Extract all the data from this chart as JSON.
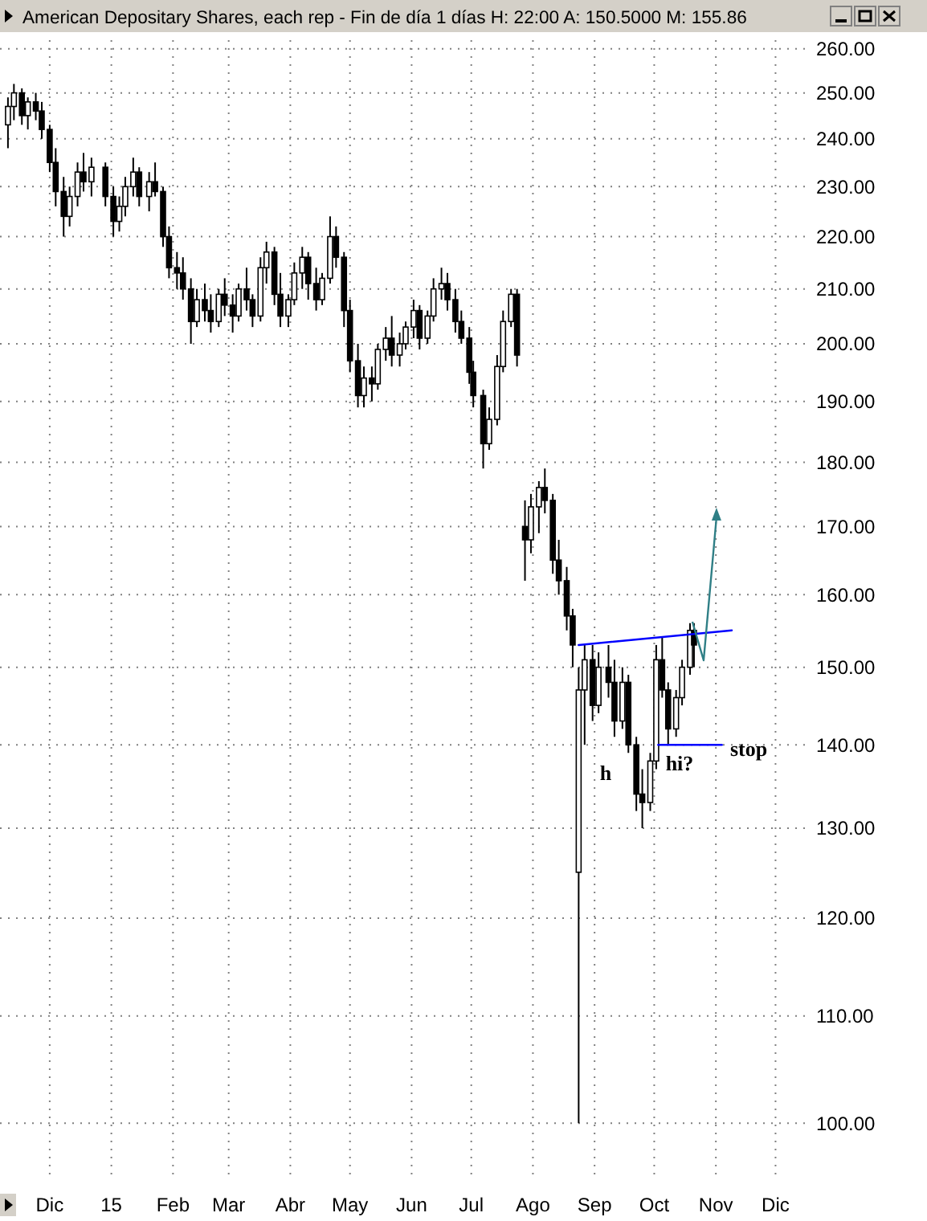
{
  "chart_data": {
    "type": "candlestick",
    "title": "American Depositary Shares, each rep - Fin de día 1 días  H: 22:00  A: 150.5000  M: 155.86",
    "color": "#000000",
    "x": [
      "2014-11-10",
      "2014-11-13",
      "2014-11-17",
      "2014-11-20",
      "2014-11-24",
      "2014-11-27",
      "2014-12-01",
      "2014-12-04",
      "2014-12-08",
      "2014-12-11",
      "2014-12-15",
      "2014-12-18",
      "2014-12-22",
      "2014-12-29",
      "2015-01-02",
      "2015-01-05",
      "2015-01-08",
      "2015-01-12",
      "2015-01-15",
      "2015-01-20",
      "2015-01-23",
      "2015-01-27",
      "2015-01-30",
      "2015-02-03",
      "2015-02-06",
      "2015-02-10",
      "2015-02-13",
      "2015-02-17",
      "2015-02-20",
      "2015-02-24",
      "2015-02-27",
      "2015-03-03",
      "2015-03-06",
      "2015-03-10",
      "2015-03-13",
      "2015-03-17",
      "2015-03-20",
      "2015-03-24",
      "2015-03-27",
      "2015-03-31",
      "2015-04-03",
      "2015-04-07",
      "2015-04-10",
      "2015-04-14",
      "2015-04-17",
      "2015-04-21",
      "2015-04-24",
      "2015-04-28",
      "2015-05-01",
      "2015-05-05",
      "2015-05-08",
      "2015-05-12",
      "2015-05-15",
      "2015-05-19",
      "2015-05-22",
      "2015-05-26",
      "2015-05-29",
      "2015-06-02",
      "2015-06-05",
      "2015-06-09",
      "2015-06-12",
      "2015-06-16",
      "2015-06-19",
      "2015-06-23",
      "2015-06-26",
      "2015-06-30",
      "2015-07-02",
      "2015-07-07",
      "2015-07-10",
      "2015-07-14",
      "2015-07-17",
      "2015-07-21",
      "2015-07-24",
      "2015-07-28",
      "2015-07-31",
      "2015-08-04",
      "2015-08-07",
      "2015-08-11",
      "2015-08-14",
      "2015-08-18",
      "2015-08-21",
      "2015-08-24",
      "2015-08-27",
      "2015-08-31",
      "2015-09-03",
      "2015-09-08",
      "2015-09-11",
      "2015-09-15",
      "2015-09-18",
      "2015-09-22",
      "2015-09-25",
      "2015-09-29",
      "2015-10-02",
      "2015-10-05",
      "2015-10-08",
      "2015-10-12",
      "2015-10-15",
      "2015-10-19",
      "2015-10-21"
    ],
    "ohlc": [
      [
        243,
        249,
        238,
        247
      ],
      [
        247,
        252,
        244,
        250
      ],
      [
        250,
        251,
        243,
        245
      ],
      [
        245,
        249,
        242,
        248
      ],
      [
        248,
        250,
        244,
        246
      ],
      [
        246,
        248,
        240,
        242
      ],
      [
        242,
        243,
        233,
        235
      ],
      [
        235,
        238,
        226,
        229
      ],
      [
        229,
        232,
        220,
        224
      ],
      [
        224,
        230,
        222,
        228
      ],
      [
        228,
        235,
        226,
        233
      ],
      [
        233,
        237,
        229,
        231
      ],
      [
        231,
        236,
        228,
        234
      ],
      [
        234,
        235,
        226,
        228
      ],
      [
        228,
        230,
        220,
        223
      ],
      [
        223,
        228,
        221,
        226
      ],
      [
        226,
        232,
        224,
        230
      ],
      [
        230,
        236,
        228,
        233
      ],
      [
        233,
        234,
        226,
        228
      ],
      [
        228,
        233,
        225,
        231
      ],
      [
        231,
        235,
        228,
        229
      ],
      [
        229,
        230,
        218,
        220
      ],
      [
        220,
        222,
        212,
        214
      ],
      [
        214,
        217,
        210,
        213
      ],
      [
        213,
        216,
        208,
        210
      ],
      [
        210,
        212,
        200,
        204
      ],
      [
        204,
        210,
        203,
        208
      ],
      [
        208,
        211,
        204,
        206
      ],
      [
        206,
        209,
        202,
        204
      ],
      [
        204,
        210,
        203,
        209
      ],
      [
        209,
        212,
        205,
        207
      ],
      [
        207,
        209,
        202,
        205
      ],
      [
        205,
        211,
        204,
        210
      ],
      [
        210,
        214,
        206,
        208
      ],
      [
        208,
        209,
        203,
        205
      ],
      [
        205,
        216,
        204,
        214
      ],
      [
        214,
        219,
        211,
        217
      ],
      [
        217,
        218,
        207,
        209
      ],
      [
        209,
        213,
        203,
        205
      ],
      [
        205,
        209,
        203,
        208
      ],
      [
        208,
        215,
        207,
        213
      ],
      [
        213,
        218,
        210,
        216
      ],
      [
        216,
        217,
        208,
        211
      ],
      [
        211,
        214,
        206,
        208
      ],
      [
        208,
        213,
        207,
        212
      ],
      [
        212,
        224,
        211,
        220
      ],
      [
        220,
        222,
        214,
        216
      ],
      [
        216,
        217,
        203,
        206
      ],
      [
        206,
        208,
        195,
        197
      ],
      [
        197,
        200,
        189,
        191
      ],
      [
        191,
        196,
        189,
        194
      ],
      [
        194,
        196,
        190,
        193
      ],
      [
        193,
        200,
        192,
        199
      ],
      [
        199,
        203,
        197,
        201
      ],
      [
        201,
        205,
        196,
        198
      ],
      [
        198,
        202,
        196,
        200
      ],
      [
        200,
        204,
        199,
        203
      ],
      [
        203,
        208,
        201,
        206
      ],
      [
        206,
        207,
        199,
        201
      ],
      [
        201,
        206,
        200,
        205
      ],
      [
        205,
        212,
        204,
        210
      ],
      [
        210,
        214,
        208,
        211
      ],
      [
        211,
        213,
        206,
        208
      ],
      [
        208,
        210,
        202,
        204
      ],
      [
        204,
        206,
        200,
        201
      ],
      [
        201,
        203,
        193,
        195
      ],
      [
        195,
        197,
        189,
        191
      ],
      [
        191,
        192,
        179,
        183
      ],
      [
        183,
        189,
        182,
        187
      ],
      [
        187,
        198,
        186,
        196
      ],
      [
        196,
        206,
        195,
        204
      ],
      [
        204,
        210,
        203,
        209
      ],
      [
        209,
        210,
        196,
        198
      ],
      [
        170,
        174,
        162,
        168
      ],
      [
        168,
        175,
        166,
        173
      ],
      [
        173,
        177,
        169,
        176
      ],
      [
        176,
        179,
        172,
        174
      ],
      [
        174,
        175,
        163,
        165
      ],
      [
        165,
        168,
        160,
        162
      ],
      [
        162,
        164,
        155,
        157
      ],
      [
        157,
        158,
        150,
        153
      ],
      [
        125,
        150,
        100,
        147
      ],
      [
        147,
        153,
        140,
        151
      ],
      [
        151,
        153,
        143,
        145
      ],
      [
        145,
        152,
        144,
        150
      ],
      [
        150,
        153,
        146,
        148
      ],
      [
        148,
        151,
        141,
        143
      ],
      [
        143,
        150,
        142,
        148
      ],
      [
        148,
        149,
        139,
        140
      ],
      [
        140,
        141,
        132,
        134
      ],
      [
        134,
        137,
        130,
        133
      ],
      [
        133,
        139,
        132,
        138
      ],
      [
        138,
        153,
        137,
        151
      ],
      [
        151,
        154,
        146,
        147
      ],
      [
        147,
        148,
        140,
        142
      ],
      [
        142,
        147,
        141,
        146
      ],
      [
        146,
        151,
        145,
        150
      ],
      [
        150,
        156,
        149,
        155
      ],
      [
        155,
        156,
        150,
        153
      ]
    ],
    "series": [
      {
        "type": "line",
        "color": "#0000ff",
        "x": [
          "2015-08-24",
          "2015-11-09"
        ],
        "values": [
          153,
          155
        ]
      },
      {
        "type": "line",
        "color": "#0000ff",
        "x": [
          "2015-10-03",
          "2015-11-04"
        ],
        "values": [
          140,
          140
        ]
      }
    ],
    "annotations": [
      "h",
      "hi?",
      "stop"
    ],
    "log": true,
    "grid": true,
    "xlim": [
      "2014-11-06",
      "2015-12-19"
    ],
    "xticks": [
      {
        "value": "2014-12-01",
        "label": "Dic"
      },
      {
        "value": "2015-01-01",
        "label": "15"
      },
      {
        "value": "2015-02-01",
        "label": "Feb"
      },
      {
        "value": "2015-03-01",
        "label": "Mar"
      },
      {
        "value": "2015-04-01",
        "label": "Abr"
      },
      {
        "value": "2015-05-01",
        "label": "May"
      },
      {
        "value": "2015-06-01",
        "label": "Jun"
      },
      {
        "value": "2015-07-01",
        "label": "Jul"
      },
      {
        "value": "2015-08-01",
        "label": "Ago"
      },
      {
        "value": "2015-09-01",
        "label": "Sep"
      },
      {
        "value": "2015-10-01",
        "label": "Oct"
      },
      {
        "value": "2015-11-01",
        "label": "Nov"
      },
      {
        "value": "2015-12-01",
        "label": "Dic"
      }
    ],
    "ylim": [
      95,
      262
    ],
    "yticks": [
      {
        "value": 100,
        "label": "100.00"
      },
      {
        "value": 110,
        "label": "110.00"
      },
      {
        "value": 120,
        "label": "120.00"
      },
      {
        "value": 130,
        "label": "130.00"
      },
      {
        "value": 140,
        "label": "140.00"
      },
      {
        "value": 150,
        "label": "150.00"
      },
      {
        "value": 160,
        "label": "160.00"
      },
      {
        "value": 170,
        "label": "170.00"
      },
      {
        "value": 180,
        "label": "180.00"
      },
      {
        "value": 190,
        "label": "190.00"
      },
      {
        "value": 200,
        "label": "200.00"
      },
      {
        "value": 210,
        "label": "210.00"
      },
      {
        "value": 220,
        "label": "220.00"
      },
      {
        "value": 230,
        "label": "230.00"
      },
      {
        "value": 240,
        "label": "240.00"
      },
      {
        "value": 250,
        "label": "250.00"
      },
      {
        "value": 260,
        "label": "260.00"
      }
    ]
  }
}
